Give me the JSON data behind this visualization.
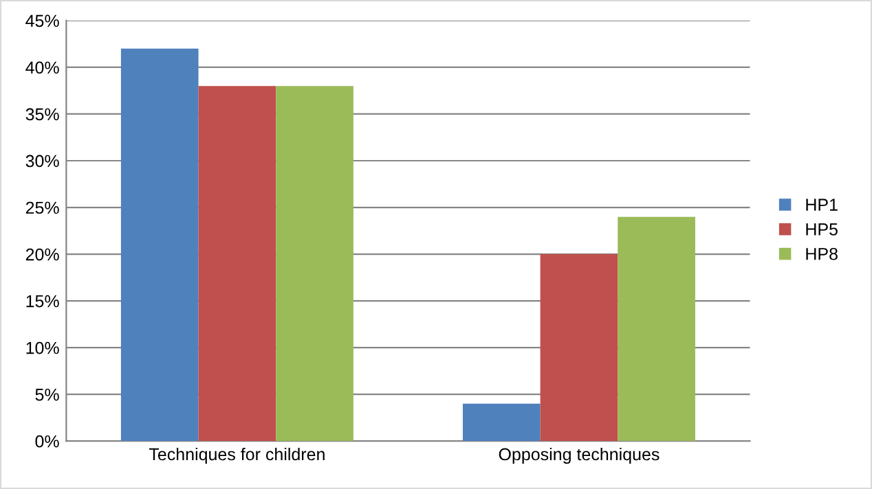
{
  "chart_data": {
    "type": "bar",
    "categories": [
      "Techniques for children",
      "Opposing techniques"
    ],
    "series": [
      {
        "name": "HP1",
        "color": "#4f81bd",
        "values": [
          42,
          4
        ]
      },
      {
        "name": "HP5",
        "color": "#c0504d",
        "values": [
          38,
          20
        ]
      },
      {
        "name": "HP8",
        "color": "#9bbb59",
        "values": [
          38,
          24
        ]
      }
    ],
    "ylim": [
      0,
      45
    ],
    "yticks": [
      {
        "value": 0,
        "label": "0%"
      },
      {
        "value": 5,
        "label": "5%"
      },
      {
        "value": 10,
        "label": "10%"
      },
      {
        "value": 15,
        "label": "15%"
      },
      {
        "value": 20,
        "label": "20%"
      },
      {
        "value": 25,
        "label": "25%"
      },
      {
        "value": 30,
        "label": "30%"
      },
      {
        "value": 35,
        "label": "35%"
      },
      {
        "value": 40,
        "label": "40%"
      },
      {
        "value": 45,
        "label": "45%"
      }
    ],
    "grid": "y",
    "legend": "right"
  }
}
